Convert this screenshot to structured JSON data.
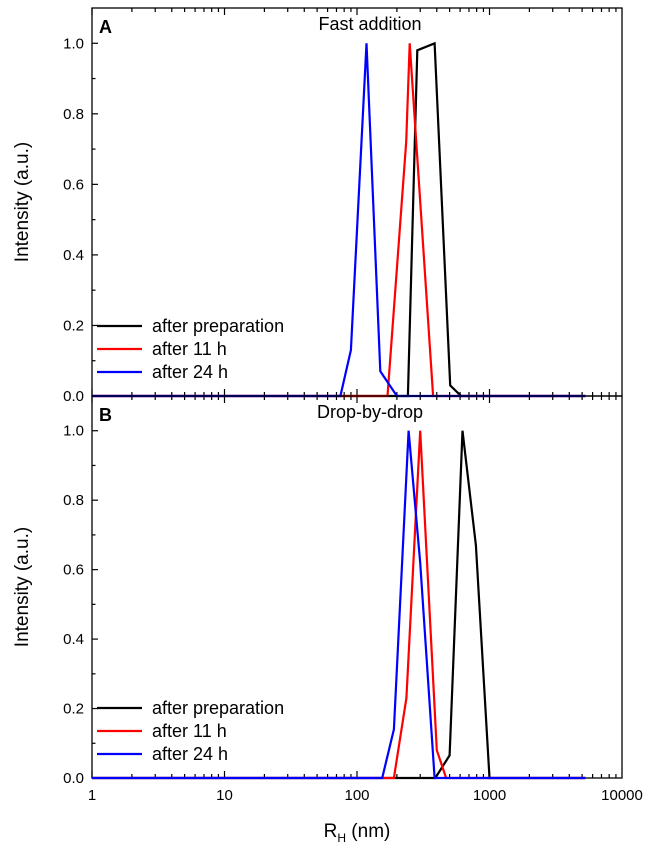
{
  "chart_data": [
    {
      "type": "line",
      "panel_letter": "A",
      "title": "Fast addition",
      "ylabel": "Intensity (a.u.)",
      "xlabel": "",
      "xscale": "log",
      "xlim": [
        1,
        10000
      ],
      "ylim": [
        0,
        1.1
      ],
      "yticks": [
        "0.0",
        "0.2",
        "0.4",
        "0.6",
        "0.8",
        "1.0"
      ],
      "xticks": [],
      "legend": "bottom-left",
      "series": [
        {
          "name": "after preparation",
          "color": "#000000",
          "x": [
            1,
            242,
            285,
            385,
            505,
            610,
            5300
          ],
          "y": [
            0,
            0,
            0.98,
            1.0,
            0.03,
            0,
            0
          ]
        },
        {
          "name": "after 11 h",
          "color": "#ff0000",
          "x": [
            1,
            170,
            235,
            250,
            375,
            5300
          ],
          "y": [
            0,
            0,
            0.72,
            1.0,
            0,
            0
          ]
        },
        {
          "name": "after 24 h",
          "color": "#0000ff",
          "x": [
            1,
            75,
            90,
            118,
            150,
            200,
            5300
          ],
          "y": [
            0,
            0,
            0.13,
            1.0,
            0.07,
            0,
            0
          ]
        }
      ]
    },
    {
      "type": "line",
      "panel_letter": "B",
      "title": "Drop-by-drop",
      "ylabel": "Intensity (a.u.)",
      "xlabel": "R_H (nm)",
      "xscale": "log",
      "xlim": [
        1,
        10000
      ],
      "ylim": [
        0,
        1.1
      ],
      "yticks": [
        "0.0",
        "0.2",
        "0.4",
        "0.6",
        "0.8",
        "1.0"
      ],
      "xticks": [
        "1",
        "10",
        "100",
        "1000",
        "10000"
      ],
      "legend": "bottom-left",
      "series": [
        {
          "name": "after preparation",
          "color": "#000000",
          "x": [
            1,
            390,
            500,
            625,
            790,
            1000,
            5300
          ],
          "y": [
            0,
            0,
            0.065,
            1.0,
            0.67,
            0,
            0
          ]
        },
        {
          "name": "after 11 h",
          "color": "#ff0000",
          "x": [
            1,
            190,
            236,
            300,
            400,
            470,
            5300
          ],
          "y": [
            0,
            0,
            0.23,
            1.0,
            0.08,
            0,
            0
          ]
        },
        {
          "name": "after 24 h",
          "color": "#0000ff",
          "x": [
            1,
            155,
            190,
            245,
            300,
            385,
            5300
          ],
          "y": [
            0,
            0,
            0.14,
            1.0,
            0.62,
            0,
            0
          ]
        }
      ]
    }
  ],
  "xaxis_label": {
    "main": "R",
    "sub": "H",
    "unit": " (nm)"
  }
}
